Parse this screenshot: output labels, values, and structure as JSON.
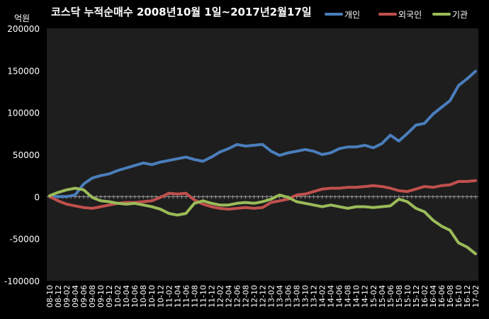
{
  "chart_data": {
    "type": "line",
    "title": "코스닥 누적순매수 2008년10월 1일~2017년2월17일",
    "ylabel": "억원",
    "xlabel": "",
    "ylim": [
      -100000,
      200000
    ],
    "yticks": [
      200000,
      150000,
      100000,
      50000,
      0,
      -50000,
      -100000
    ],
    "ytick_labels": [
      "200000",
      "150000",
      "100000",
      "50000",
      "0",
      "-50000",
      "-100000"
    ],
    "categories": [
      "08-10",
      "08-12",
      "09-02",
      "09-04",
      "09-06",
      "09-08",
      "09-10",
      "09-12",
      "10-02",
      "10-04",
      "10-06",
      "10-08",
      "10-10",
      "10-12",
      "11-02",
      "11-04",
      "11-06",
      "11-08",
      "11-10",
      "11-12",
      "12-02",
      "12-04",
      "12-06",
      "12-08",
      "12-10",
      "12-12",
      "13-02",
      "13-04",
      "13-06",
      "13-08",
      "13-10",
      "13-12",
      "14-02",
      "14-04",
      "14-06",
      "14-08",
      "14-10",
      "14-12",
      "15-02",
      "15-04",
      "15-06",
      "15-08",
      "15-10",
      "15-12",
      "16-02",
      "16-04",
      "16-06",
      "16-08",
      "16-10",
      "16-12",
      "17-02"
    ],
    "grid": false,
    "legend_position": "top-right",
    "series": [
      {
        "name": "개인",
        "color": "#4a7ebb",
        "values": [
          0,
          0,
          0,
          2000,
          15000,
          22000,
          25000,
          27000,
          31000,
          34000,
          37000,
          40000,
          38000,
          41000,
          43000,
          45000,
          47000,
          44000,
          42000,
          47000,
          53000,
          57000,
          62000,
          60000,
          61000,
          62000,
          54000,
          49000,
          52000,
          54000,
          56000,
          54000,
          50000,
          52000,
          57000,
          59000,
          59000,
          61000,
          58000,
          63000,
          73000,
          66000,
          75000,
          85000,
          87000,
          98000,
          106000,
          114000,
          132000,
          140000,
          149000
        ]
      },
      {
        "name": "외국인",
        "color": "#c0504d",
        "values": [
          0,
          -5000,
          -9000,
          -11000,
          -13000,
          -14000,
          -12000,
          -10000,
          -8000,
          -7000,
          -7000,
          -6000,
          -5000,
          -1000,
          4000,
          3000,
          4000,
          -4000,
          -9000,
          -12000,
          -14000,
          -15000,
          -14000,
          -13000,
          -14000,
          -13000,
          -7000,
          -5000,
          -3000,
          2000,
          3000,
          6000,
          9000,
          10000,
          10000,
          11000,
          11000,
          12000,
          13000,
          12000,
          10000,
          7000,
          6000,
          9000,
          12000,
          11000,
          13000,
          14000,
          18000,
          18000,
          19000
        ]
      },
      {
        "name": "기관",
        "color": "#9bbb59",
        "values": [
          1000,
          5000,
          8000,
          10000,
          8000,
          -1000,
          -5000,
          -6000,
          -8000,
          -9000,
          -8000,
          -10000,
          -12000,
          -15000,
          -20000,
          -22000,
          -20000,
          -8000,
          -5000,
          -8000,
          -10000,
          -10000,
          -8000,
          -7000,
          -8000,
          -6000,
          -3000,
          2000,
          -1000,
          -6000,
          -8000,
          -10000,
          -12000,
          -10000,
          -12000,
          -14000,
          -12000,
          -12000,
          -13000,
          -12000,
          -11000,
          -3000,
          -6000,
          -14000,
          -18000,
          -28000,
          -35000,
          -40000,
          -55000,
          -60000,
          -68000
        ]
      }
    ]
  }
}
